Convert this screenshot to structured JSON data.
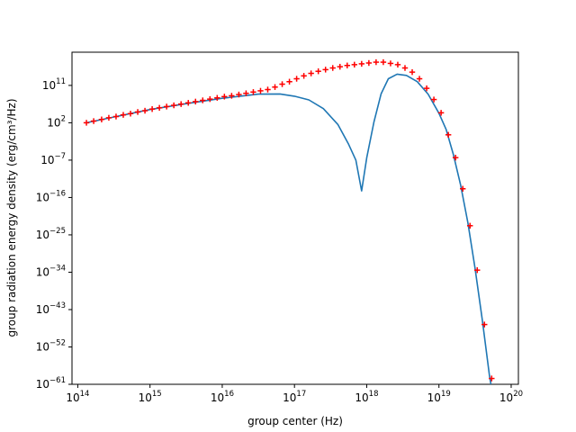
{
  "chart_data": {
    "type": "line",
    "xlabel": "group center (Hz)",
    "ylabel": "group radiation energy density (erg/cm³/Hz)",
    "xscale": "log",
    "yscale": "log",
    "xlim_exp": [
      13.92,
      20.1
    ],
    "ylim_exp": [
      -61,
      19
    ],
    "x_ticks": [
      {
        "exp": 14,
        "label_base": "10",
        "label_exp": "14"
      },
      {
        "exp": 15,
        "label_base": "10",
        "label_exp": "15"
      },
      {
        "exp": 16,
        "label_base": "10",
        "label_exp": "16"
      },
      {
        "exp": 17,
        "label_base": "10",
        "label_exp": "17"
      },
      {
        "exp": 18,
        "label_base": "10",
        "label_exp": "18"
      },
      {
        "exp": 19,
        "label_base": "10",
        "label_exp": "19"
      },
      {
        "exp": 20,
        "label_base": "10",
        "label_exp": "20"
      }
    ],
    "y_ticks": [
      {
        "exp": -61,
        "label_base": "10",
        "label_exp": "−61"
      },
      {
        "exp": -52,
        "label_base": "10",
        "label_exp": "−52"
      },
      {
        "exp": -43,
        "label_base": "10",
        "label_exp": "−43"
      },
      {
        "exp": -34,
        "label_base": "10",
        "label_exp": "−34"
      },
      {
        "exp": -25,
        "label_base": "10",
        "label_exp": "−25"
      },
      {
        "exp": -16,
        "label_base": "10",
        "label_exp": "−16"
      },
      {
        "exp": -7,
        "label_base": "10",
        "label_exp": "−7"
      },
      {
        "exp": 2,
        "label_base": "10",
        "label_exp": "2"
      },
      {
        "exp": 11,
        "label_base": "10",
        "label_exp": "11"
      }
    ],
    "series": [
      {
        "kind": "line",
        "color": "#1f77b4",
        "points_log10": [
          [
            14.12,
            2.0
          ],
          [
            14.5,
            3.4
          ],
          [
            15.0,
            5.2
          ],
          [
            15.5,
            6.6
          ],
          [
            16.0,
            7.9
          ],
          [
            16.3,
            8.5
          ],
          [
            16.5,
            8.9
          ],
          [
            16.8,
            8.95
          ],
          [
            17.0,
            8.4
          ],
          [
            17.2,
            7.5
          ],
          [
            17.4,
            5.4
          ],
          [
            17.6,
            1.6
          ],
          [
            17.75,
            -3.2
          ],
          [
            17.85,
            -7.0
          ],
          [
            17.93,
            -14.4
          ],
          [
            18.0,
            -6.4
          ],
          [
            18.1,
            2.2
          ],
          [
            18.2,
            9.0
          ],
          [
            18.3,
            12.6
          ],
          [
            18.42,
            13.7
          ],
          [
            18.55,
            13.4
          ],
          [
            18.7,
            11.9
          ],
          [
            18.85,
            8.9
          ],
          [
            19.0,
            4.3
          ],
          [
            19.1,
            0.4
          ],
          [
            19.2,
            -5.7
          ],
          [
            19.3,
            -13.0
          ],
          [
            19.4,
            -22.0
          ],
          [
            19.5,
            -33.0
          ],
          [
            19.6,
            -45.5
          ],
          [
            19.7,
            -59.0
          ],
          [
            19.72,
            -61.0
          ]
        ]
      },
      {
        "kind": "markers",
        "marker": "+",
        "color": "#ff0000",
        "points_log10": [
          [
            14.12,
            2.0
          ],
          [
            14.22,
            2.4
          ],
          [
            14.33,
            2.8
          ],
          [
            14.43,
            3.2
          ],
          [
            14.53,
            3.5
          ],
          [
            14.63,
            3.9
          ],
          [
            14.73,
            4.2
          ],
          [
            14.83,
            4.6
          ],
          [
            14.93,
            4.9
          ],
          [
            15.03,
            5.3
          ],
          [
            15.13,
            5.6
          ],
          [
            15.23,
            5.9
          ],
          [
            15.33,
            6.2
          ],
          [
            15.43,
            6.5
          ],
          [
            15.53,
            6.8
          ],
          [
            15.63,
            7.1
          ],
          [
            15.73,
            7.4
          ],
          [
            15.83,
            7.7
          ],
          [
            15.93,
            8.0
          ],
          [
            16.03,
            8.3
          ],
          [
            16.13,
            8.5
          ],
          [
            16.23,
            8.8
          ],
          [
            16.33,
            9.1
          ],
          [
            16.43,
            9.4
          ],
          [
            16.53,
            9.7
          ],
          [
            16.63,
            10.0
          ],
          [
            16.73,
            10.6
          ],
          [
            16.83,
            11.3
          ],
          [
            16.93,
            11.9
          ],
          [
            17.03,
            12.6
          ],
          [
            17.13,
            13.3
          ],
          [
            17.23,
            13.9
          ],
          [
            17.33,
            14.4
          ],
          [
            17.43,
            14.8
          ],
          [
            17.53,
            15.2
          ],
          [
            17.63,
            15.5
          ],
          [
            17.73,
            15.8
          ],
          [
            17.83,
            16.0
          ],
          [
            17.93,
            16.2
          ],
          [
            18.03,
            16.4
          ],
          [
            18.13,
            16.6
          ],
          [
            18.23,
            16.6
          ],
          [
            18.33,
            16.3
          ],
          [
            18.43,
            16.0
          ],
          [
            18.53,
            15.2
          ],
          [
            18.63,
            14.2
          ],
          [
            18.73,
            12.6
          ],
          [
            18.83,
            10.3
          ],
          [
            18.93,
            7.6
          ],
          [
            19.03,
            4.4
          ],
          [
            19.13,
            -0.9
          ],
          [
            19.23,
            -6.4
          ],
          [
            19.33,
            -13.9
          ],
          [
            19.43,
            -22.8
          ],
          [
            19.53,
            -33.5
          ],
          [
            19.63,
            -46.6
          ],
          [
            19.73,
            -59.6
          ]
        ]
      }
    ]
  }
}
